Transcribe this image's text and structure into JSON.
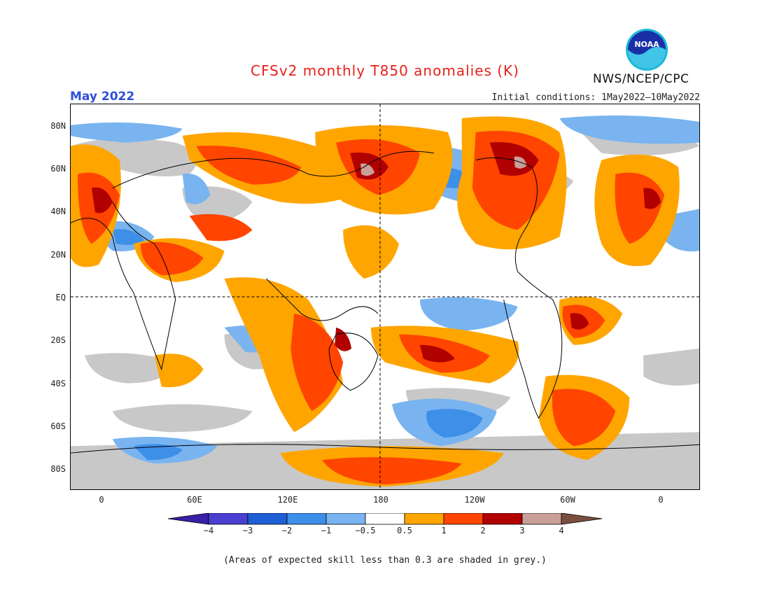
{
  "title": "CFSv2 monthly T850 anomalies (K)",
  "month": "May 2022",
  "initial_conditions": "Initial conditions: 1May2022—10May2022",
  "agency": "NWS/NCEP/CPC",
  "logo_text": "NOAA",
  "lat_labels": [
    "80N",
    "60N",
    "40N",
    "20N",
    "EQ",
    "20S",
    "40S",
    "60S",
    "80S"
  ],
  "lon_labels": [
    "0",
    "60E",
    "120E",
    "180",
    "120W",
    "60W",
    "0"
  ],
  "colorbar": {
    "labels": [
      "−4",
      "−3",
      "−2",
      "−1",
      "−0.5",
      "0.5",
      "1",
      "2",
      "3",
      "4"
    ],
    "colors": [
      "#3a1fa8",
      "#4a3fd0",
      "#1f5fd6",
      "#3d8fe8",
      "#79b4f0",
      "#ffffff",
      "#ffa500",
      "#ff4500",
      "#b00000",
      "#c9a098",
      "#7a4f3f"
    ]
  },
  "note": "(Areas of expected skill less than 0.3 are shaded in grey.)"
}
